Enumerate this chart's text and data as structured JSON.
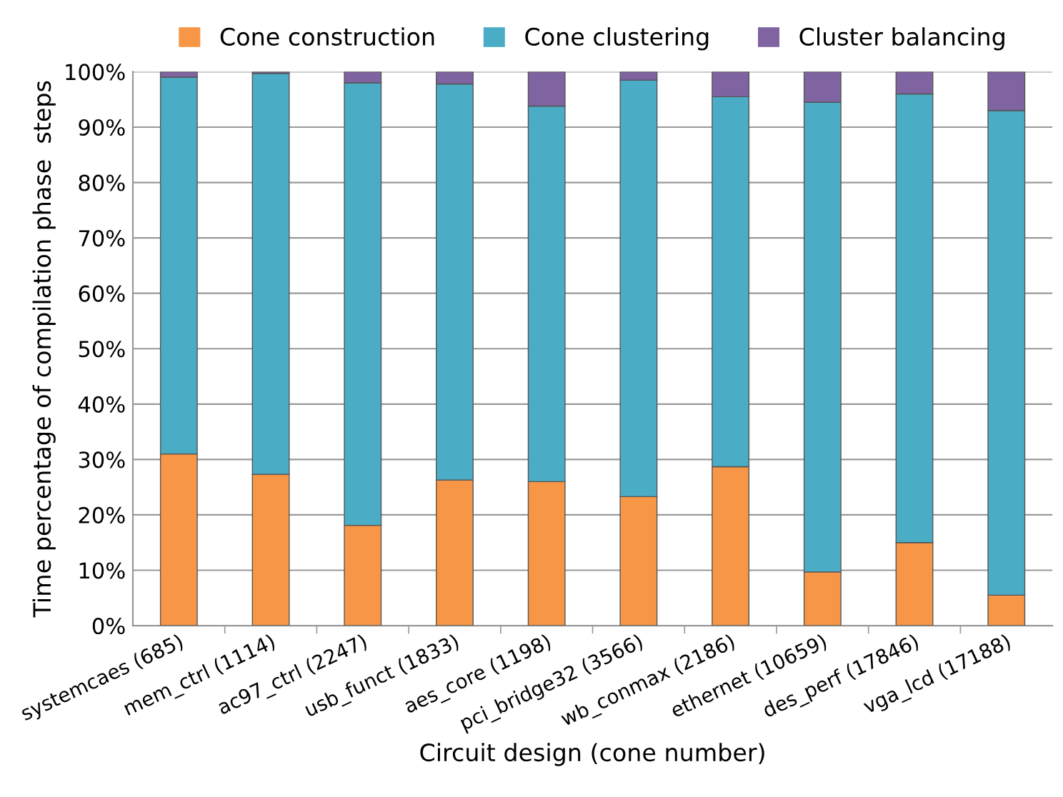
{
  "chart_data": {
    "type": "bar",
    "stacked": true,
    "xlabel": "Circuit design (cone number)",
    "ylabel": "Time percentage of compilation phase  steps",
    "categories": [
      "systemcaes (685)",
      "mem_ctrl (1114)",
      "ac97_ctrl (2247)",
      "usb_funct (1833)",
      "aes_core (1198)",
      "pci_bridge32 (3566)",
      "wb_conmax (2186)",
      "ethernet (10659)",
      "des_perf (17846)",
      "vga_lcd (17188)"
    ],
    "series": [
      {
        "name": "Cone construction",
        "color": "#f79646",
        "values": [
          31,
          27.3,
          18.1,
          26.3,
          26,
          23.3,
          28.7,
          9.7,
          15,
          5.5
        ]
      },
      {
        "name": "Cone clustering",
        "color": "#4bacc6",
        "values": [
          68,
          72.4,
          79.9,
          71.5,
          67.8,
          75.2,
          66.8,
          84.8,
          81,
          87.5
        ]
      },
      {
        "name": "Cluster balancing",
        "color": "#8064a2",
        "values": [
          1,
          0.3,
          2,
          2.2,
          6.2,
          1.5,
          4.5,
          5.5,
          4,
          7
        ]
      }
    ],
    "ylim": [
      0,
      100
    ],
    "yticks": [
      {
        "value": 0,
        "label": "0%"
      },
      {
        "value": 10,
        "label": "10%"
      },
      {
        "value": 20,
        "label": "20%"
      },
      {
        "value": 30,
        "label": "30%"
      },
      {
        "value": 40,
        "label": "40%"
      },
      {
        "value": 50,
        "label": "50%"
      },
      {
        "value": 60,
        "label": "60%"
      },
      {
        "value": 70,
        "label": "70%"
      },
      {
        "value": 80,
        "label": "80%"
      },
      {
        "value": 90,
        "label": "90%"
      },
      {
        "value": 100,
        "label": "100%"
      }
    ],
    "grid": "y",
    "legend": "top"
  }
}
